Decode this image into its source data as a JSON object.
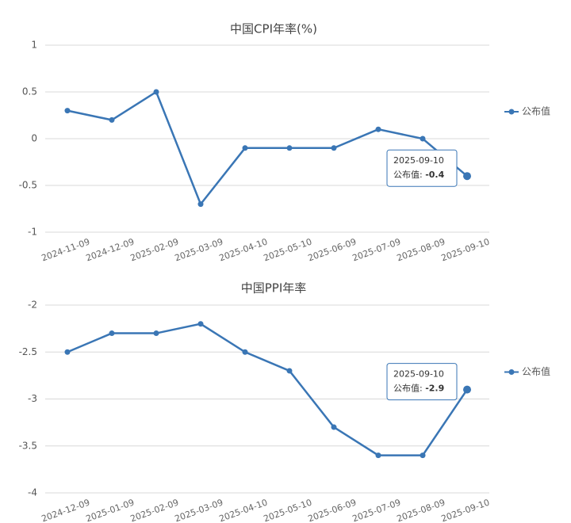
{
  "chart_data": [
    {
      "type": "line",
      "title": "中国CPI年率(%)",
      "categories": [
        "2024-11-09",
        "2024-12-09",
        "2025-02-09",
        "2025-03-09",
        "2025-04-10",
        "2025-05-10",
        "2025-06-09",
        "2025-07-09",
        "2025-08-09",
        "2025-09-10"
      ],
      "series": [
        {
          "name": "公布值",
          "color": "#3a76b5",
          "values": [
            0.3,
            0.2,
            0.5,
            -0.7,
            -0.1,
            -0.1,
            -0.1,
            0.1,
            0,
            -0.4
          ]
        }
      ],
      "ylim": [
        -1,
        1
      ],
      "yticks": [
        -1,
        -0.5,
        0,
        0.5,
        1
      ],
      "grid": true,
      "legend": "right"
    },
    {
      "type": "line",
      "title": "中国PPI年率",
      "categories": [
        "2024-12-09",
        "2025-01-09",
        "2025-02-09",
        "2025-03-09",
        "2025-04-10",
        "2025-05-10",
        "2025-06-09",
        "2025-07-09",
        "2025-08-09",
        "2025-09-10"
      ],
      "series": [
        {
          "name": "公布值",
          "color": "#3a76b5",
          "values": [
            -2.5,
            -2.3,
            -2.3,
            -2.2,
            -2.5,
            -2.7,
            -3.3,
            -3.6,
            -3.6,
            -2.9
          ]
        }
      ],
      "ylim": [
        -4,
        -2
      ],
      "yticks": [
        -4,
        -3.5,
        -3,
        -2.5,
        -2
      ],
      "grid": true,
      "legend": "right"
    }
  ]
}
